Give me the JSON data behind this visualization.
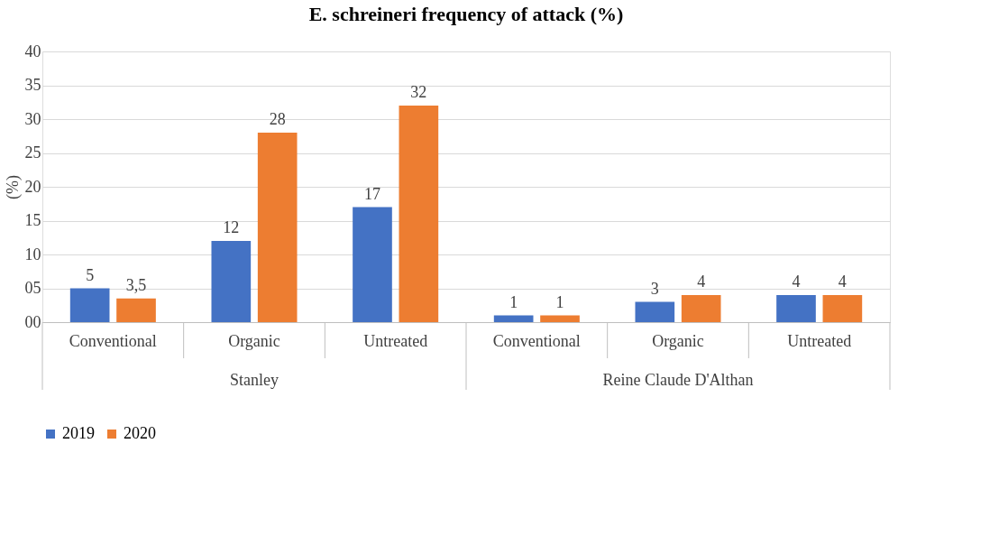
{
  "chart_data": {
    "type": "bar",
    "title": "E. schreineri frequency of attack (%)",
    "ylabel": "(%)",
    "categories": [
      "Conventional",
      "Organic",
      "Untreated",
      "Conventional",
      "Organic",
      "Untreated"
    ],
    "annotations": [
      "Stanley",
      "Reine Claude D'Althan"
    ],
    "series": [
      {
        "name": "2019",
        "color": "#4472c4",
        "values": [
          5,
          12,
          17,
          1,
          3,
          4
        ],
        "value_labels": [
          "5",
          "12",
          "17",
          "1",
          "3",
          "4"
        ]
      },
      {
        "name": "2020",
        "color": "#ed7d31",
        "values": [
          3.5,
          28,
          32,
          1,
          4,
          4
        ],
        "value_labels": [
          "3,5",
          "28",
          "32",
          "1",
          "4",
          "4"
        ]
      }
    ],
    "ylim": [
      0,
      40
    ],
    "yticks": [
      {
        "value": 0,
        "label": "00"
      },
      {
        "value": 5,
        "label": "05"
      },
      10,
      15,
      20,
      25,
      30,
      35,
      40
    ],
    "grid": "y",
    "legend": "bottom"
  }
}
